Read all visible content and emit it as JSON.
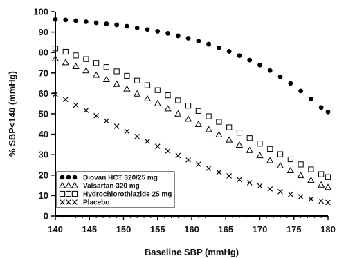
{
  "chart_data": {
    "type": "scatter",
    "title": "",
    "xlabel": "Baseline SBP (mmHg)",
    "ylabel": "% SBP<140 (mmHg)",
    "xlim": [
      140,
      180
    ],
    "ylim": [
      0,
      100
    ],
    "x_ticks": [
      "140",
      "145",
      "150",
      "155",
      "160",
      "165",
      "170",
      "175",
      "180"
    ],
    "y_ticks": [
      "0",
      "10",
      "20",
      "30",
      "40",
      "50",
      "60",
      "70",
      "80",
      "90",
      "100"
    ],
    "grid": false,
    "legend_position": "bottom-left",
    "x": [
      140,
      141.5,
      143,
      144.5,
      146,
      147.5,
      149,
      150.5,
      152,
      153.5,
      155,
      156.5,
      158,
      159.5,
      161,
      162.5,
      164,
      165.5,
      167,
      168.5,
      170,
      171.5,
      173,
      174.5,
      176,
      177.5,
      179,
      180
    ],
    "series": [
      {
        "name": "Diovan HCT 320/25 mg",
        "marker": "filled-circle",
        "color": "#000000",
        "values": [
          96.2,
          96.0,
          95.6,
          95.1,
          94.6,
          94.1,
          93.6,
          92.9,
          92.1,
          91.3,
          90.4,
          89.4,
          88.2,
          87.0,
          85.6,
          84.1,
          82.4,
          80.6,
          78.5,
          76.3,
          73.9,
          71.2,
          68.2,
          64.9,
          61.2,
          57.3,
          53.1,
          50.9
        ]
      },
      {
        "name": "Valsartan 320 mg",
        "marker": "open-triangle",
        "color": "#000000",
        "values": [
          77.0,
          75.1,
          73.2,
          71.1,
          69.0,
          66.8,
          64.5,
          62.2,
          59.8,
          57.4,
          55.0,
          52.5,
          50.0,
          47.4,
          44.9,
          42.3,
          39.8,
          37.2,
          34.7,
          32.1,
          29.6,
          27.1,
          24.6,
          22.2,
          19.8,
          17.5,
          15.2,
          14.0
        ]
      },
      {
        "name": "Hydrochlorothiazide 25 mg",
        "marker": "open-square",
        "color": "#000000",
        "values": [
          82.0,
          80.4,
          78.6,
          76.8,
          74.9,
          72.9,
          70.8,
          68.6,
          66.3,
          64.0,
          61.6,
          59.1,
          56.6,
          54.0,
          51.4,
          48.8,
          46.1,
          43.4,
          40.8,
          38.1,
          35.4,
          32.8,
          30.2,
          27.7,
          25.2,
          22.8,
          20.4,
          19.0
        ]
      },
      {
        "name": "Placebo",
        "marker": "x",
        "color": "#000000",
        "values": [
          59.6,
          57.0,
          54.3,
          51.7,
          49.1,
          46.5,
          43.9,
          41.4,
          38.9,
          36.5,
          34.1,
          31.8,
          29.6,
          27.4,
          25.3,
          23.3,
          21.4,
          19.6,
          17.8,
          16.2,
          14.7,
          13.2,
          11.9,
          10.6,
          9.4,
          8.3,
          7.3,
          6.6
        ]
      }
    ]
  }
}
